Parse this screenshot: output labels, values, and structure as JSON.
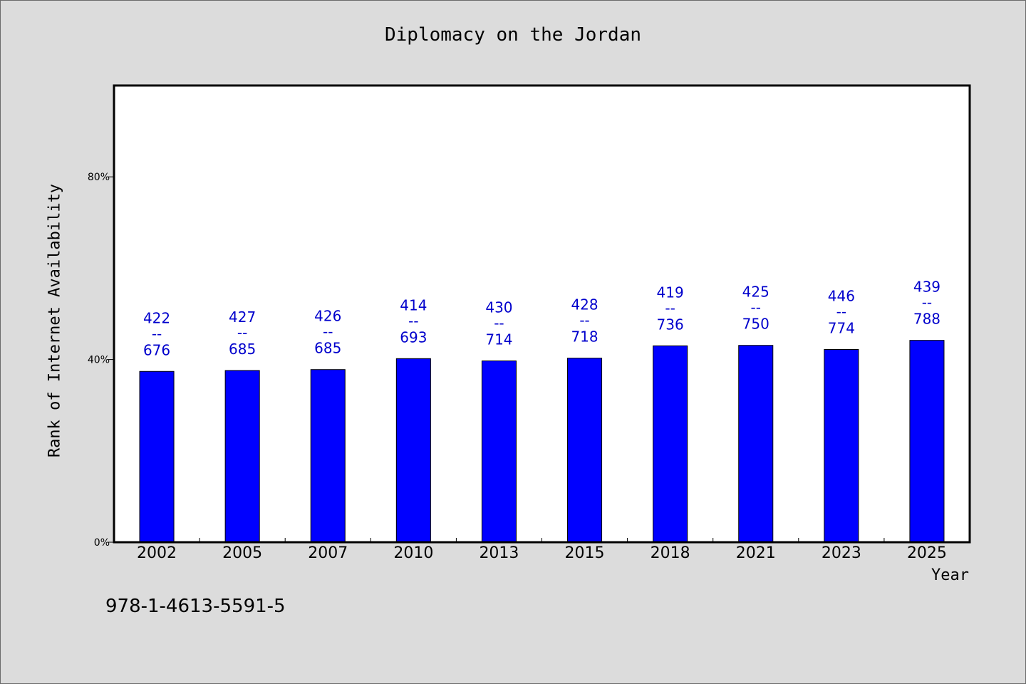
{
  "chart_data": {
    "type": "bar",
    "title": "Diplomacy on the Jordan",
    "xlabel": "Year",
    "ylabel": "Rank of Internet Availability",
    "ylim": [
      0,
      100
    ],
    "yticks": [
      {
        "value": 0,
        "label": "0%"
      },
      {
        "value": 40,
        "label": "40%"
      },
      {
        "value": 80,
        "label": "80%"
      }
    ],
    "categories": [
      "2002",
      "2005",
      "2007",
      "2010",
      "2013",
      "2015",
      "2018",
      "2021",
      "2023",
      "2025"
    ],
    "values": [
      37.4,
      37.6,
      37.8,
      40.2,
      39.7,
      40.3,
      43.0,
      43.1,
      42.2,
      44.2
    ],
    "label_top": [
      "422",
      "427",
      "426",
      "414",
      "430",
      "428",
      "419",
      "425",
      "446",
      "439"
    ],
    "label_sep": "--",
    "label_bottom": [
      "676",
      "685",
      "685",
      "693",
      "714",
      "718",
      "736",
      "750",
      "774",
      "788"
    ],
    "bar_color": "#0000ff",
    "label_color": "#0000cc",
    "grid": false,
    "legend": "none"
  },
  "footer": {
    "isbn": "978-1-4613-5591-5"
  }
}
